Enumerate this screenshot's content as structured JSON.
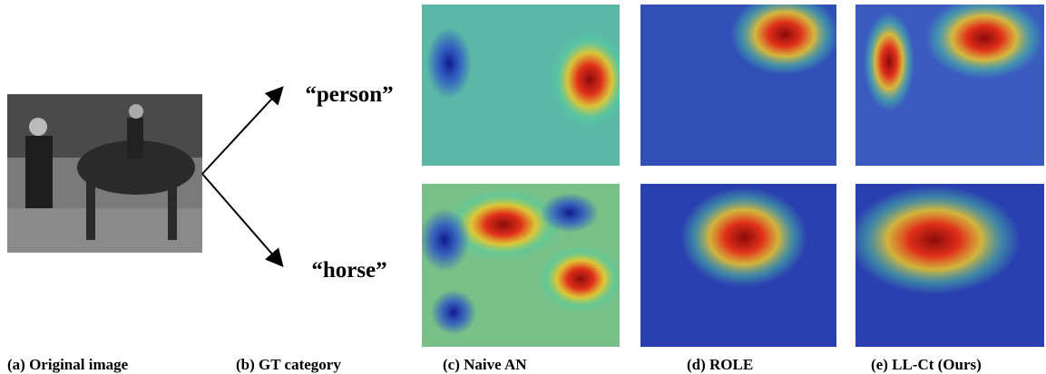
{
  "labels": [
    "“person”",
    "“horse”"
  ],
  "captions": [
    "(a) Original image",
    "(b) GT category",
    "(c) Naive AN",
    "(d) ROLE",
    "(e) LL-Ct (Ours)"
  ]
}
